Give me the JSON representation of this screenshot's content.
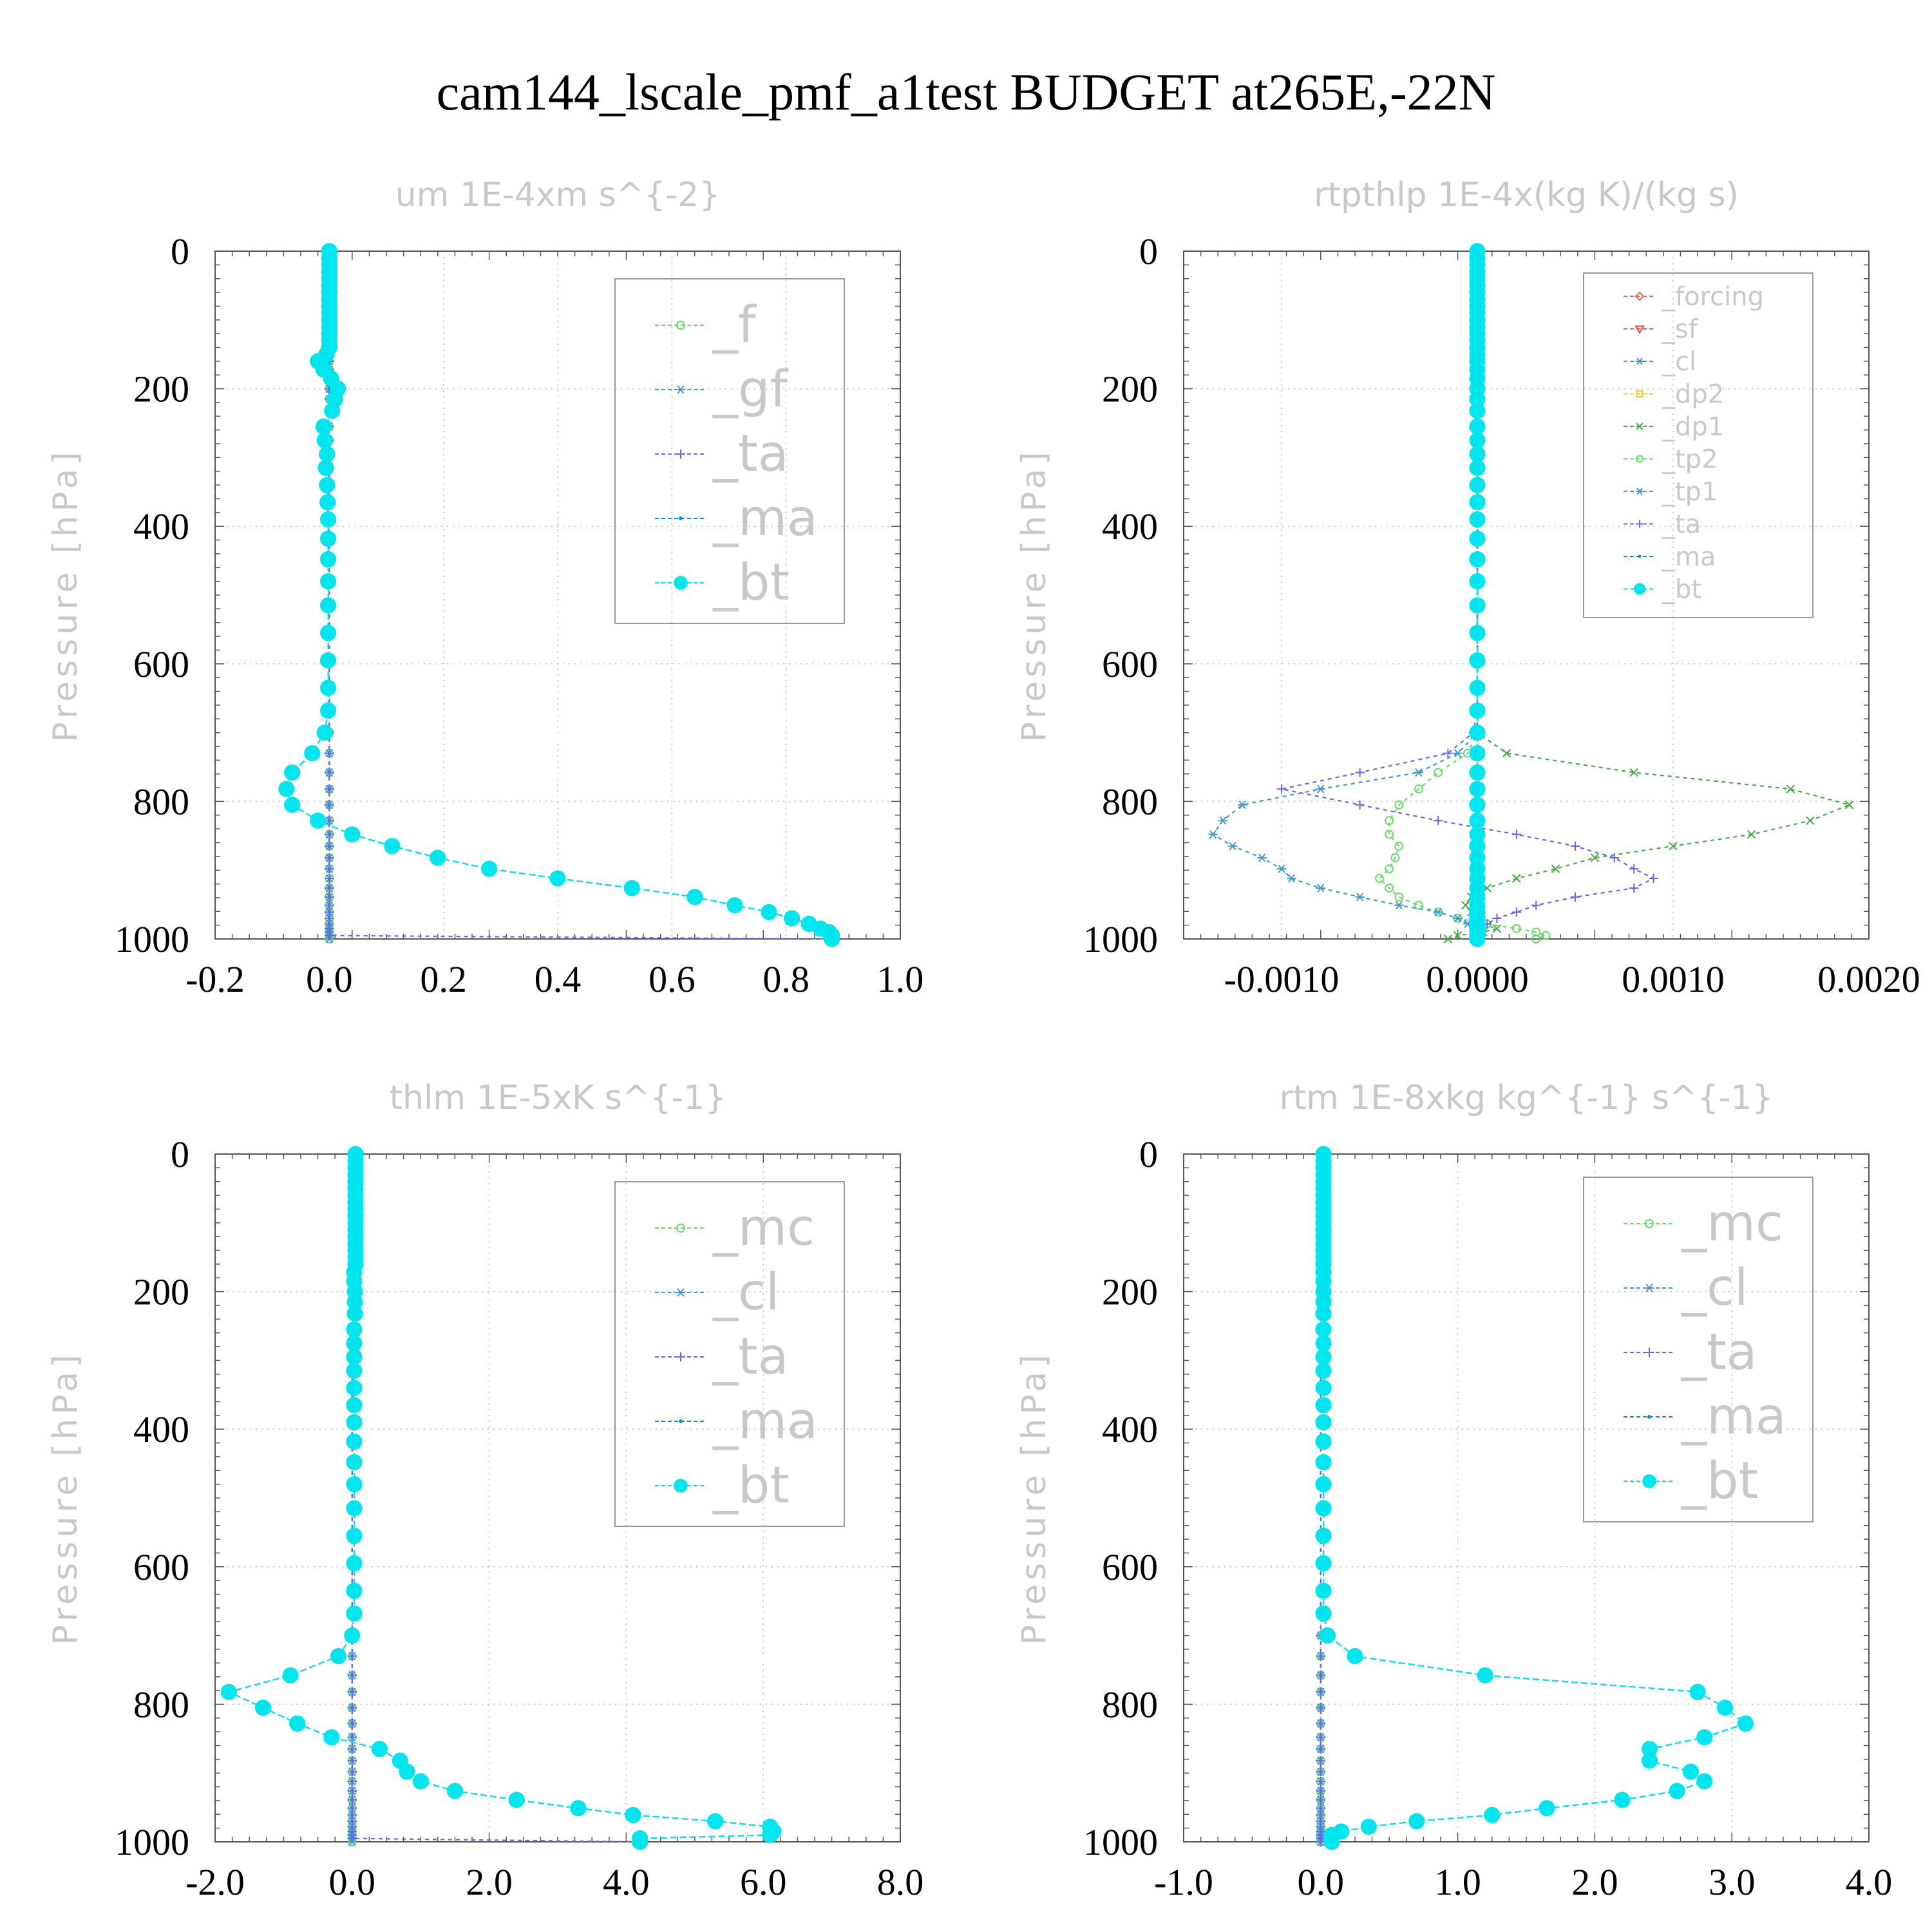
{
  "title": "cam144_lscale_pmf_a1test  BUDGET at265E,-22N",
  "colors": {
    "_f": "#66dd66",
    "_gf": "#4499cc",
    "_ta": "#6666ee",
    "_ma": "#1188ee",
    "_bt": "#00e5ee",
    "_forcing": "#ee6666",
    "_sf": "#ee4444",
    "_cl": "#4499cc",
    "_dp2": "#eecc22",
    "_dp1": "#44aa44",
    "_tp2": "#66dd66",
    "_tp1": "#4499cc",
    "_mc": "#66dd66"
  },
  "chart_data": [
    {
      "type": "line",
      "title": "um  1E-4xm s^{-2}",
      "ylabel": "Pressure [hPa]",
      "xlim": [
        -0.2,
        1.0
      ],
      "ylim": [
        1000,
        0
      ],
      "xticks": [
        "-0.2",
        "0.0",
        "0.2",
        "0.4",
        "0.6",
        "0.8",
        "1.0"
      ],
      "yticks": [
        "0",
        "200",
        "400",
        "600",
        "800",
        "1000"
      ],
      "legend": [
        "_f",
        "_gf",
        "_ta",
        "_ma",
        "_bt"
      ],
      "legend_location": "top-right",
      "grid": true,
      "levels": [
        0,
        10,
        20,
        30,
        40,
        50,
        60,
        70,
        80,
        90,
        100,
        110,
        120,
        130,
        140,
        150,
        160,
        172,
        185,
        200,
        215,
        232,
        255,
        275,
        295,
        315,
        340,
        365,
        390,
        418,
        448,
        480,
        515,
        555,
        595,
        635,
        668,
        700,
        730,
        758,
        782,
        805,
        828,
        848,
        865,
        882,
        898,
        912,
        926,
        939,
        951,
        961,
        970,
        978,
        985,
        990,
        995,
        1000
      ],
      "series": [
        {
          "name": "_f",
          "values": "zero"
        },
        {
          "name": "_gf",
          "values": "zero"
        },
        {
          "name": "_ta",
          "values": "tail",
          "tail_value": 0.87
        },
        {
          "name": "_ma",
          "values": [
            0,
            0,
            0,
            0,
            0,
            0,
            0,
            0,
            0,
            0,
            0,
            0,
            0,
            0,
            0,
            -0.005,
            -0.02,
            -0.01,
            0.003,
            0.015,
            0.01,
            0.005,
            -0.01,
            -0.008,
            -0.004,
            -0.006,
            -0.004,
            -0.003,
            -0.002,
            -0.002,
            -0.002,
            -0.002,
            -0.002,
            -0.002,
            -0.002,
            -0.002,
            -0.002,
            -0.008,
            -0.03,
            -0.065,
            -0.075,
            -0.065,
            -0.02,
            0.04,
            0.11,
            0.19,
            0.28,
            0.4,
            0.53,
            0.64,
            0.71,
            0.77,
            0.81,
            0.84,
            0.86,
            0.875,
            0.88,
            0.88
          ]
        },
        {
          "name": "_bt",
          "values": [
            0,
            0,
            0,
            0,
            0,
            0,
            0,
            0,
            0,
            0,
            0,
            0,
            0,
            0,
            0,
            -0.005,
            -0.02,
            -0.01,
            0.003,
            0.015,
            0.01,
            0.005,
            -0.01,
            -0.008,
            -0.004,
            -0.006,
            -0.004,
            -0.003,
            -0.002,
            -0.002,
            -0.002,
            -0.002,
            -0.002,
            -0.002,
            -0.002,
            -0.002,
            -0.002,
            -0.008,
            -0.03,
            -0.065,
            -0.075,
            -0.065,
            -0.02,
            0.04,
            0.11,
            0.19,
            0.28,
            0.4,
            0.53,
            0.64,
            0.71,
            0.77,
            0.81,
            0.84,
            0.86,
            0.875,
            0.88,
            0.88
          ]
        }
      ]
    },
    {
      "type": "line",
      "title": "rtpthlp  1E-4x(kg K)/(kg s)",
      "ylabel": "Pressure [hPa]",
      "xlim": [
        -0.0015,
        0.002
      ],
      "ylim": [
        1000,
        0
      ],
      "xticks": [
        "-0.0010",
        "0.0000",
        "0.0010",
        "0.0020"
      ],
      "yticks": [
        "0",
        "200",
        "400",
        "600",
        "800",
        "1000"
      ],
      "legend": [
        "_forcing",
        "_sf",
        "_cl",
        "_dp2",
        "_dp1",
        "_tp2",
        "_tp1",
        "_ta",
        "_ma",
        "_bt"
      ],
      "legend_location": "top-right",
      "grid": true,
      "levels": [
        0,
        10,
        20,
        30,
        40,
        50,
        60,
        70,
        80,
        90,
        100,
        110,
        120,
        130,
        140,
        150,
        160,
        172,
        185,
        200,
        215,
        232,
        255,
        275,
        295,
        315,
        340,
        365,
        390,
        418,
        448,
        480,
        515,
        555,
        595,
        635,
        668,
        700,
        730,
        758,
        782,
        805,
        828,
        848,
        865,
        882,
        898,
        912,
        926,
        939,
        951,
        961,
        970,
        978,
        985,
        990,
        995,
        1000
      ],
      "series": [
        {
          "name": "_forcing",
          "values": "zero"
        },
        {
          "name": "_sf",
          "values": "zero"
        },
        {
          "name": "_cl",
          "values": "zero"
        },
        {
          "name": "_dp2",
          "values": "zero"
        },
        {
          "name": "_dp1",
          "values": [
            0,
            0,
            0,
            0,
            0,
            0,
            0,
            0,
            0,
            0,
            0,
            0,
            0,
            0,
            0,
            0,
            0,
            0,
            0,
            0,
            0,
            0,
            0,
            0,
            0,
            0,
            0,
            0,
            0,
            0,
            0,
            0,
            0,
            0,
            0,
            0,
            0,
            0,
            0.00015,
            0.0008,
            0.0016,
            0.0019,
            0.0017,
            0.0014,
            0.001,
            0.0006,
            0.0004,
            0.0002,
            5e-05,
            -3e-05,
            -6e-05,
            -3e-05,
            0,
            2e-05,
            0.0001,
            3e-05,
            -0.0001,
            -0.00015
          ]
        },
        {
          "name": "_tp2",
          "values": [
            0,
            0,
            0,
            0,
            0,
            0,
            0,
            0,
            0,
            0,
            0,
            0,
            0,
            0,
            0,
            0,
            0,
            0,
            0,
            0,
            0,
            0,
            0,
            0,
            0,
            0,
            0,
            0,
            0,
            0,
            0,
            0,
            0,
            0,
            0,
            0,
            0,
            0,
            -5e-05,
            -0.0002,
            -0.0003,
            -0.0004,
            -0.00045,
            -0.00045,
            -0.0004,
            -0.00042,
            -0.00045,
            -0.0005,
            -0.00045,
            -0.0004,
            -0.0003,
            -0.0002,
            -0.0001,
            5e-05,
            0.0002,
            0.0003,
            0.00035,
            0.0003
          ]
        },
        {
          "name": "_tp1",
          "values": [
            0,
            0,
            0,
            0,
            0,
            0,
            0,
            0,
            0,
            0,
            0,
            0,
            0,
            0,
            0,
            0,
            0,
            0,
            0,
            0,
            0,
            0,
            0,
            0,
            0,
            0,
            0,
            0,
            0,
            0,
            0,
            0,
            0,
            0,
            0,
            0,
            0,
            0,
            -0.0001,
            -0.0003,
            -0.0008,
            -0.0012,
            -0.0013,
            -0.00135,
            -0.00125,
            -0.0011,
            -0.001,
            -0.00095,
            -0.0008,
            -0.0006,
            -0.0004,
            -0.0002,
            -0.0001,
            -5e-05,
            0,
            2e-05,
            1e-05,
            0
          ]
        },
        {
          "name": "_ta",
          "values": [
            0,
            0,
            0,
            0,
            0,
            0,
            0,
            0,
            0,
            0,
            0,
            0,
            0,
            0,
            0,
            0,
            0,
            0,
            0,
            0,
            0,
            0,
            0,
            0,
            0,
            0,
            0,
            0,
            0,
            0,
            0,
            0,
            0,
            0,
            0,
            0,
            0,
            -2e-05,
            -0.00015,
            -0.0006,
            -0.001,
            -0.0006,
            -0.0002,
            0.0002,
            0.0005,
            0.0007,
            0.0008,
            0.0009,
            0.0008,
            0.0005,
            0.0003,
            0.0002,
            0.0001,
            5e-05,
            0,
            0,
            0,
            0
          ]
        },
        {
          "name": "_ma",
          "values": "zero"
        },
        {
          "name": "_bt",
          "values": "zero"
        }
      ]
    },
    {
      "type": "line",
      "title": "thlm  1E-5xK s^{-1}",
      "ylabel": "Pressure [hPa]",
      "xlim": [
        -2.0,
        8.0
      ],
      "ylim": [
        1000,
        0
      ],
      "xticks": [
        "-2.0",
        "0.0",
        "2.0",
        "4.0",
        "6.0",
        "8.0"
      ],
      "yticks": [
        "0",
        "200",
        "400",
        "600",
        "800",
        "1000"
      ],
      "legend": [
        "_mc",
        "_cl",
        "_ta",
        "_ma",
        "_bt"
      ],
      "legend_location": "top-right",
      "grid": true,
      "levels": [
        0,
        10,
        20,
        30,
        40,
        50,
        60,
        70,
        80,
        90,
        100,
        110,
        120,
        130,
        140,
        150,
        160,
        172,
        185,
        200,
        215,
        232,
        255,
        275,
        295,
        315,
        340,
        365,
        390,
        418,
        448,
        480,
        515,
        555,
        595,
        635,
        668,
        700,
        730,
        758,
        782,
        805,
        828,
        848,
        865,
        882,
        898,
        912,
        926,
        939,
        951,
        961,
        970,
        978,
        985,
        990,
        995,
        1000
      ],
      "series": [
        {
          "name": "_mc",
          "values": "zero"
        },
        {
          "name": "_cl",
          "values": "zero"
        },
        {
          "name": "_ta",
          "values": "tail",
          "tail_value": 4.2
        },
        {
          "name": "_ma",
          "values": [
            0.05,
            0.05,
            0.05,
            0.05,
            0.05,
            0.05,
            0.05,
            0.05,
            0.05,
            0.05,
            0.05,
            0.05,
            0.05,
            0.05,
            0.05,
            0.05,
            0.05,
            0.03,
            0.03,
            0.04,
            0.04,
            0.04,
            0.03,
            0.03,
            0.03,
            0.03,
            0.03,
            0.03,
            0.03,
            0.03,
            0.03,
            0.03,
            0.03,
            0.03,
            0.03,
            0.03,
            0.03,
            0.0,
            -0.2,
            -0.9,
            -1.8,
            -1.3,
            -0.8,
            -0.3,
            0.4,
            0.7,
            0.8,
            1.0,
            1.5,
            2.4,
            3.3,
            4.1,
            5.3,
            6.1,
            6.15,
            6.1,
            4.2,
            4.2
          ]
        },
        {
          "name": "_bt",
          "values": [
            0.05,
            0.05,
            0.05,
            0.05,
            0.05,
            0.05,
            0.05,
            0.05,
            0.05,
            0.05,
            0.05,
            0.05,
            0.05,
            0.05,
            0.05,
            0.05,
            0.05,
            0.03,
            0.03,
            0.04,
            0.04,
            0.04,
            0.03,
            0.03,
            0.03,
            0.03,
            0.03,
            0.03,
            0.03,
            0.03,
            0.03,
            0.03,
            0.03,
            0.03,
            0.03,
            0.03,
            0.03,
            0.0,
            -0.2,
            -0.9,
            -1.8,
            -1.3,
            -0.8,
            -0.3,
            0.4,
            0.7,
            0.8,
            1.0,
            1.5,
            2.4,
            3.3,
            4.1,
            5.3,
            6.1,
            6.15,
            6.1,
            4.2,
            4.2
          ]
        }
      ]
    },
    {
      "type": "line",
      "title": "rtm  1E-8xkg kg^{-1} s^{-1}",
      "ylabel": "Pressure [hPa]",
      "xlim": [
        -1.0,
        4.0
      ],
      "ylim": [
        1000,
        0
      ],
      "xticks": [
        "-1.0",
        "0.0",
        "1.0",
        "2.0",
        "3.0",
        "4.0"
      ],
      "yticks": [
        "0",
        "200",
        "400",
        "600",
        "800",
        "1000"
      ],
      "legend": [
        "_mc",
        "_cl",
        "_ta",
        "_ma",
        "_bt"
      ],
      "legend_location": "top-right",
      "grid": true,
      "levels": [
        0,
        10,
        20,
        30,
        40,
        50,
        60,
        70,
        80,
        90,
        100,
        110,
        120,
        130,
        140,
        150,
        160,
        172,
        185,
        200,
        215,
        232,
        255,
        275,
        295,
        315,
        340,
        365,
        390,
        418,
        448,
        480,
        515,
        555,
        595,
        635,
        668,
        700,
        730,
        758,
        782,
        805,
        828,
        848,
        865,
        882,
        898,
        912,
        926,
        939,
        951,
        961,
        970,
        978,
        985,
        990,
        995,
        1000
      ],
      "series": [
        {
          "name": "_mc",
          "values": "zero"
        },
        {
          "name": "_cl",
          "values": "zero"
        },
        {
          "name": "_ta",
          "values": "zero"
        },
        {
          "name": "_ma",
          "values": [
            0.02,
            0.02,
            0.02,
            0.02,
            0.02,
            0.02,
            0.02,
            0.02,
            0.02,
            0.02,
            0.02,
            0.02,
            0.02,
            0.02,
            0.02,
            0.02,
            0.02,
            0.02,
            0.02,
            0.02,
            0.02,
            0.02,
            0.02,
            0.02,
            0.02,
            0.02,
            0.02,
            0.02,
            0.02,
            0.02,
            0.02,
            0.02,
            0.02,
            0.02,
            0.02,
            0.02,
            0.02,
            0.05,
            0.25,
            1.2,
            2.75,
            2.95,
            3.1,
            2.8,
            2.4,
            2.4,
            2.7,
            2.8,
            2.6,
            2.2,
            1.65,
            1.25,
            0.7,
            0.35,
            0.15,
            0.08,
            0.08,
            0.08
          ]
        },
        {
          "name": "_bt",
          "values": [
            0.02,
            0.02,
            0.02,
            0.02,
            0.02,
            0.02,
            0.02,
            0.02,
            0.02,
            0.02,
            0.02,
            0.02,
            0.02,
            0.02,
            0.02,
            0.02,
            0.02,
            0.02,
            0.02,
            0.02,
            0.02,
            0.02,
            0.02,
            0.02,
            0.02,
            0.02,
            0.02,
            0.02,
            0.02,
            0.02,
            0.02,
            0.02,
            0.02,
            0.02,
            0.02,
            0.02,
            0.02,
            0.05,
            0.25,
            1.2,
            2.75,
            2.95,
            3.1,
            2.8,
            2.4,
            2.4,
            2.7,
            2.8,
            2.6,
            2.2,
            1.65,
            1.25,
            0.7,
            0.35,
            0.15,
            0.08,
            0.08,
            0.08
          ]
        }
      ]
    }
  ]
}
